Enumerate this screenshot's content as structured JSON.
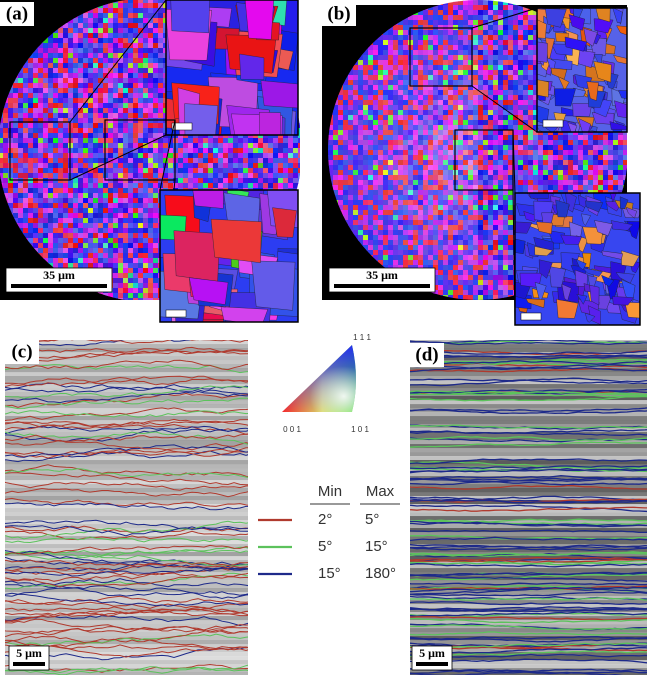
{
  "panels": [
    {
      "label": "(a)",
      "scale_bar": "35 μm"
    },
    {
      "label": "(b)",
      "scale_bar": "35 μm"
    },
    {
      "label": "(c)",
      "scale_bar": "5 μm"
    },
    {
      "label": "(d)",
      "scale_bar": "5 μm"
    }
  ],
  "ipf_key": {
    "corners": [
      "0 0 1",
      "1 0 1",
      "1 1 1"
    ]
  },
  "legend": {
    "headers": [
      "Min",
      "Max"
    ],
    "rows": [
      {
        "min": "2°",
        "max": "5°",
        "color": "#b03a2e"
      },
      {
        "min": "5°",
        "max": "15°",
        "color": "#5cc25c"
      },
      {
        "min": "15°",
        "max": "180°",
        "color": "#1e2a8a"
      }
    ]
  }
}
